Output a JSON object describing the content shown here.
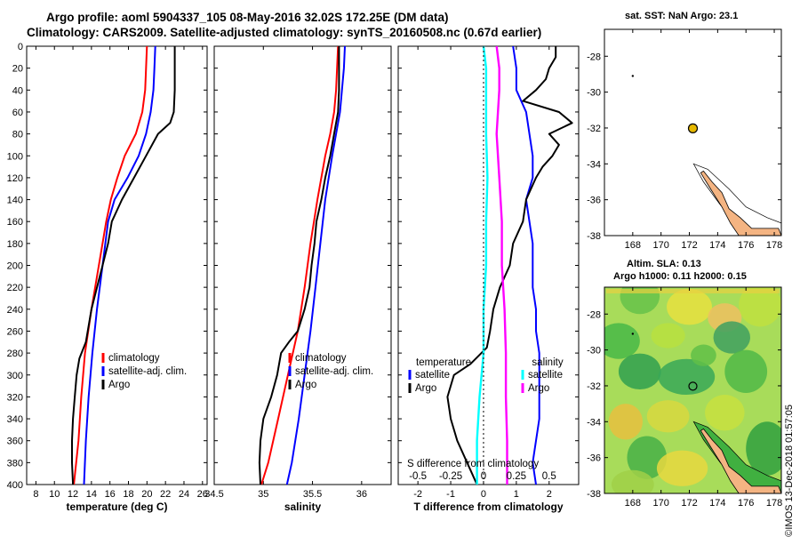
{
  "header": {
    "line1": "Argo profile: aoml 5904337_105 08-May-2016 32.02S 172.25E (DM data)",
    "line2": "Climatology: CARS2009. Satellite-adjusted climatology: synTS_20160508.nc (0.67d earlier)"
  },
  "colors": {
    "climatology": "#ff0000",
    "satellite": "#0000ff",
    "argo": "#000000",
    "s_clim": "#ff00ff",
    "s_sat": "#00ffff",
    "land": "#f4b482",
    "marker": "#e6b800"
  },
  "chart_data": [
    {
      "id": "temperature",
      "type": "line",
      "xlabel": "temperature (deg C)",
      "xlim": [
        7,
        26.5
      ],
      "xticks": [
        8,
        10,
        12,
        14,
        16,
        18,
        20,
        22,
        24,
        26
      ],
      "ylim": [
        400,
        0
      ],
      "yticks": [
        0,
        20,
        40,
        60,
        80,
        100,
        120,
        140,
        160,
        180,
        200,
        220,
        240,
        260,
        280,
        300,
        320,
        340,
        360,
        380,
        400
      ],
      "legend": [
        "climatology",
        "satellite-adj. clim.",
        "Argo"
      ],
      "series": [
        {
          "name": "climatology",
          "depth": [
            0,
            20,
            40,
            60,
            80,
            100,
            120,
            140,
            160,
            200,
            240,
            280,
            320,
            360,
            400
          ],
          "values": [
            20.0,
            19.9,
            19.8,
            19.5,
            18.8,
            17.6,
            16.8,
            16.1,
            15.6,
            14.8,
            14.0,
            13.3,
            12.9,
            12.6,
            12.1
          ]
        },
        {
          "name": "satellite-adj. clim.",
          "depth": [
            0,
            20,
            40,
            60,
            80,
            100,
            120,
            140,
            160,
            200,
            240,
            280,
            320,
            360,
            400
          ],
          "values": [
            20.9,
            20.8,
            20.7,
            20.4,
            19.9,
            19.1,
            17.9,
            16.5,
            15.8,
            15.2,
            14.6,
            14.1,
            13.7,
            13.4,
            13.2
          ]
        },
        {
          "name": "Argo",
          "depth": [
            0,
            20,
            40,
            60,
            70,
            80,
            100,
            120,
            140,
            160,
            180,
            200,
            240,
            270,
            285,
            300,
            320,
            340,
            360,
            380,
            400
          ],
          "values": [
            23.0,
            23.0,
            23.0,
            22.9,
            22.5,
            21.2,
            19.9,
            18.6,
            17.3,
            16.2,
            15.8,
            15.2,
            14.0,
            13.4,
            12.7,
            12.4,
            12.2,
            12.0,
            11.9,
            11.9,
            12.0
          ]
        }
      ]
    },
    {
      "id": "salinity",
      "type": "line",
      "xlabel": "salinity",
      "xlim": [
        34.5,
        36.3
      ],
      "xticks": [
        34.5,
        35,
        35.5,
        36
      ],
      "ylim": [
        400,
        0
      ],
      "legend": [
        "climatology",
        "satellite-adj. clim.",
        "Argo"
      ],
      "series": [
        {
          "name": "climatology",
          "depth": [
            0,
            20,
            40,
            60,
            80,
            100,
            140,
            180,
            220,
            260,
            300,
            340,
            380,
            400
          ],
          "values": [
            35.76,
            35.75,
            35.74,
            35.72,
            35.68,
            35.63,
            35.55,
            35.48,
            35.42,
            35.35,
            35.25,
            35.15,
            35.05,
            34.98
          ]
        },
        {
          "name": "satellite-adj. clim.",
          "depth": [
            0,
            20,
            40,
            60,
            80,
            100,
            140,
            180,
            220,
            260,
            300,
            340,
            380,
            400
          ],
          "values": [
            35.83,
            35.82,
            35.8,
            35.78,
            35.74,
            35.7,
            35.63,
            35.58,
            35.53,
            35.48,
            35.42,
            35.36,
            35.29,
            35.24
          ]
        },
        {
          "name": "Argo",
          "depth": [
            0,
            20,
            40,
            60,
            80,
            100,
            120,
            140,
            160,
            180,
            200,
            220,
            240,
            260,
            270,
            280,
            300,
            320,
            340,
            360,
            380,
            400
          ],
          "values": [
            35.77,
            35.77,
            35.77,
            35.76,
            35.72,
            35.68,
            35.63,
            35.59,
            35.54,
            35.52,
            35.49,
            35.47,
            35.42,
            35.35,
            35.26,
            35.18,
            35.14,
            35.08,
            35.0,
            34.97,
            34.96,
            34.97
          ]
        }
      ]
    },
    {
      "id": "difference",
      "type": "line",
      "xlabel": "T difference from climatology",
      "xlabel_top": "S difference from climatology",
      "xlim": [
        -2.6,
        2.9
      ],
      "xticks": [
        -2,
        -1,
        0,
        1,
        2
      ],
      "xticks_top": [
        -0.5,
        -0.25,
        0,
        0.25,
        0.5
      ],
      "ylim": [
        400,
        0
      ],
      "legend_left": {
        "title": "temperature",
        "items": [
          "satellite",
          "Argo"
        ]
      },
      "legend_right": {
        "title": "salinity",
        "items": [
          "satellite",
          "Argo"
        ]
      },
      "series": [
        {
          "name": "T satellite",
          "depth": [
            0,
            20,
            40,
            60,
            80,
            100,
            120,
            140,
            160,
            180,
            200,
            220,
            240,
            260,
            280,
            300,
            320,
            340,
            360,
            380,
            400
          ],
          "values": [
            0.9,
            1.0,
            1.0,
            1.3,
            1.4,
            1.5,
            1.5,
            1.3,
            1.4,
            1.5,
            1.5,
            1.5,
            1.6,
            1.6,
            1.7,
            1.7,
            1.7,
            1.7,
            1.6,
            1.5,
            1.6
          ]
        },
        {
          "name": "T Argo",
          "depth": [
            0,
            10,
            20,
            30,
            40,
            50,
            60,
            70,
            80,
            90,
            100,
            110,
            120,
            140,
            160,
            180,
            200,
            220,
            240,
            260,
            275,
            290,
            300,
            320,
            340,
            360,
            380,
            400
          ],
          "values": [
            2.2,
            2.2,
            2.0,
            1.9,
            1.6,
            1.2,
            2.3,
            2.7,
            2.0,
            2.3,
            2.1,
            1.8,
            1.6,
            1.3,
            1.2,
            0.9,
            0.8,
            0.5,
            0.3,
            0.2,
            0.1,
            -0.4,
            -0.9,
            -1.1,
            -1.0,
            -0.8,
            -0.5,
            -0.2
          ]
        },
        {
          "name": "S satellite",
          "depth": [
            0,
            20,
            40,
            80,
            120,
            160,
            200,
            240,
            280,
            320,
            360,
            400
          ],
          "values": [
            0.1,
            0.12,
            0.12,
            0.1,
            0.12,
            0.14,
            0.14,
            0.16,
            0.17,
            0.17,
            0.18,
            0.18
          ]
        },
        {
          "name": "S Argo",
          "depth": [
            0,
            20,
            40,
            80,
            120,
            160,
            200,
            240,
            280,
            320,
            360,
            400
          ],
          "values": [
            0.0,
            0.02,
            0.02,
            0.02,
            0.03,
            0.02,
            0.02,
            0.0,
            0.0,
            -0.03,
            -0.05,
            -0.05
          ]
        }
      ]
    },
    {
      "id": "sst_map",
      "type": "map",
      "title": "sat. SST: NaN Argo: 23.1",
      "xlim": [
        166,
        178.5
      ],
      "ylim": [
        -38,
        -26.5
      ],
      "xticks": [
        168,
        170,
        172,
        174,
        176,
        178
      ],
      "yticks": [
        -28,
        -30,
        -32,
        -34,
        -36,
        -38
      ],
      "marker": {
        "lon": 172.25,
        "lat": -32.02
      }
    },
    {
      "id": "sla_map",
      "type": "heatmap",
      "title1": "Altim. SLA: 0.13",
      "title2": "Argo h1000: 0.11 h2000: 0.15",
      "xlim": [
        166,
        178.5
      ],
      "ylim": [
        -38,
        -26.5
      ],
      "xticks": [
        168,
        170,
        172,
        174,
        176,
        178
      ],
      "yticks": [
        -28,
        -30,
        -32,
        -34,
        -36,
        -38
      ],
      "marker": {
        "lon": 172.25,
        "lat": -32.02
      }
    }
  ],
  "credit": "©IMOS 13-Dec-2018 01:57:05"
}
